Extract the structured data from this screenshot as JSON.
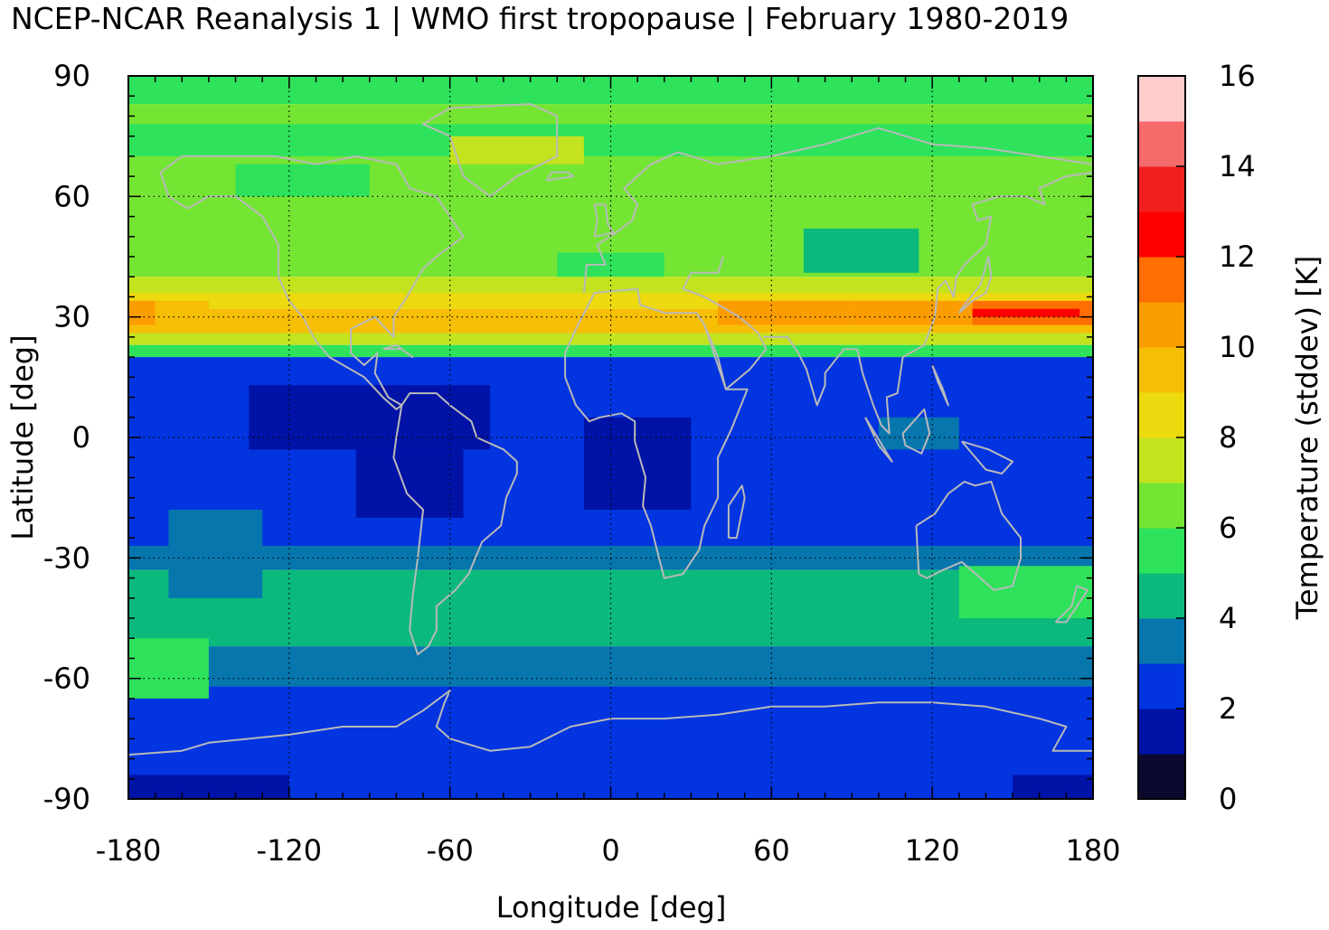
{
  "chart_data": {
    "type": "heatmap",
    "title": "NCEP-NCAR Reanalysis 1 | WMO first tropopause | February 1980-2019",
    "xlabel": "Longitude [deg]",
    "ylabel": "Latitude [deg]",
    "colorbar_label": "Temperature (stddev) [K]",
    "xlim": [
      -180,
      180
    ],
    "ylim": [
      -90,
      90
    ],
    "xticks": [
      -180,
      -120,
      -60,
      0,
      60,
      120,
      180
    ],
    "yticks": [
      90,
      60,
      30,
      0,
      -30,
      -60,
      -90
    ],
    "grid": true,
    "coastlines": true,
    "colorbar": {
      "range": [
        0,
        16
      ],
      "ticks": [
        0,
        2,
        4,
        6,
        8,
        10,
        12,
        14,
        16
      ],
      "colors": [
        "#0b0a2e",
        "#0013a6",
        "#0234e0",
        "#0676ad",
        "#0bb97c",
        "#2ee25c",
        "#75e534",
        "#c3e31e",
        "#ecd90e",
        "#f6be04",
        "#fb9d00",
        "#ff6e00",
        "#ff0000",
        "#f02020",
        "#f56a6a",
        "#ffcccc"
      ]
    },
    "lat_bands": [
      {
        "lat": [
          83,
          90
        ],
        "value": 5.5
      },
      {
        "lat": [
          60,
          83
        ],
        "value": 6.6
      },
      {
        "lat": [
          40,
          60
        ],
        "value": 6.4
      },
      {
        "lat": [
          36,
          40
        ],
        "value": 7.6
      },
      {
        "lat": [
          32,
          36
        ],
        "value": 8.8
      },
      {
        "lat": [
          26,
          32
        ],
        "value": 9.6
      },
      {
        "lat": [
          23,
          26
        ],
        "value": 7.4
      },
      {
        "lat": [
          20,
          23
        ],
        "value": 5.6
      },
      {
        "lat": [
          -27,
          20
        ],
        "value": 2.5
      },
      {
        "lat": [
          -33,
          -27
        ],
        "value": 3.6
      },
      {
        "lat": [
          -52,
          -33
        ],
        "value": 4.8
      },
      {
        "lat": [
          -62,
          -52
        ],
        "value": 3.6
      },
      {
        "lat": [
          -90,
          -62
        ],
        "value": 2.6
      }
    ],
    "features": [
      {
        "lon": [
          -180,
          180
        ],
        "lat": [
          70,
          78
        ],
        "value": 5.6
      },
      {
        "lon": [
          -60,
          -10
        ],
        "lat": [
          68,
          75
        ],
        "value": 7.8
      },
      {
        "lon": [
          -140,
          -90
        ],
        "lat": [
          60,
          68
        ],
        "value": 5.8
      },
      {
        "lon": [
          -180,
          -170
        ],
        "lat": [
          28,
          34
        ],
        "value": 10.6
      },
      {
        "lon": [
          -170,
          -150
        ],
        "lat": [
          28,
          34
        ],
        "value": 9.8
      },
      {
        "lon": [
          40,
          90
        ],
        "lat": [
          28,
          34
        ],
        "value": 10.3
      },
      {
        "lon": [
          90,
          135
        ],
        "lat": [
          28,
          34
        ],
        "value": 10.4
      },
      {
        "lon": [
          135,
          180
        ],
        "lat": [
          28,
          34
        ],
        "value": 11.4
      },
      {
        "lon": [
          135,
          175
        ],
        "lat": [
          30,
          32
        ],
        "value": 12.6
      },
      {
        "lon": [
          72,
          115
        ],
        "lat": [
          41,
          52
        ],
        "value": 4.5
      },
      {
        "lon": [
          -20,
          20
        ],
        "lat": [
          40,
          46
        ],
        "value": 5.6
      },
      {
        "lon": [
          -135,
          -45
        ],
        "lat": [
          -3,
          13
        ],
        "value": 1.5
      },
      {
        "lon": [
          -95,
          -55
        ],
        "lat": [
          -20,
          -3
        ],
        "value": 1.5
      },
      {
        "lon": [
          -10,
          30
        ],
        "lat": [
          -18,
          5
        ],
        "value": 1.5
      },
      {
        "lon": [
          100,
          130
        ],
        "lat": [
          -3,
          5
        ],
        "value": 3.5
      },
      {
        "lon": [
          -165,
          -130
        ],
        "lat": [
          -40,
          -18
        ],
        "value": 3.6
      },
      {
        "lon": [
          -180,
          -150
        ],
        "lat": [
          -65,
          -50
        ],
        "value": 5.6
      },
      {
        "lon": [
          130,
          180
        ],
        "lat": [
          -45,
          -32
        ],
        "value": 5.5
      },
      {
        "lon": [
          -180,
          -120
        ],
        "lat": [
          -90,
          -84
        ],
        "value": 1.6
      },
      {
        "lon": [
          150,
          180
        ],
        "lat": [
          -90,
          -84
        ],
        "value": 1.6
      }
    ]
  }
}
